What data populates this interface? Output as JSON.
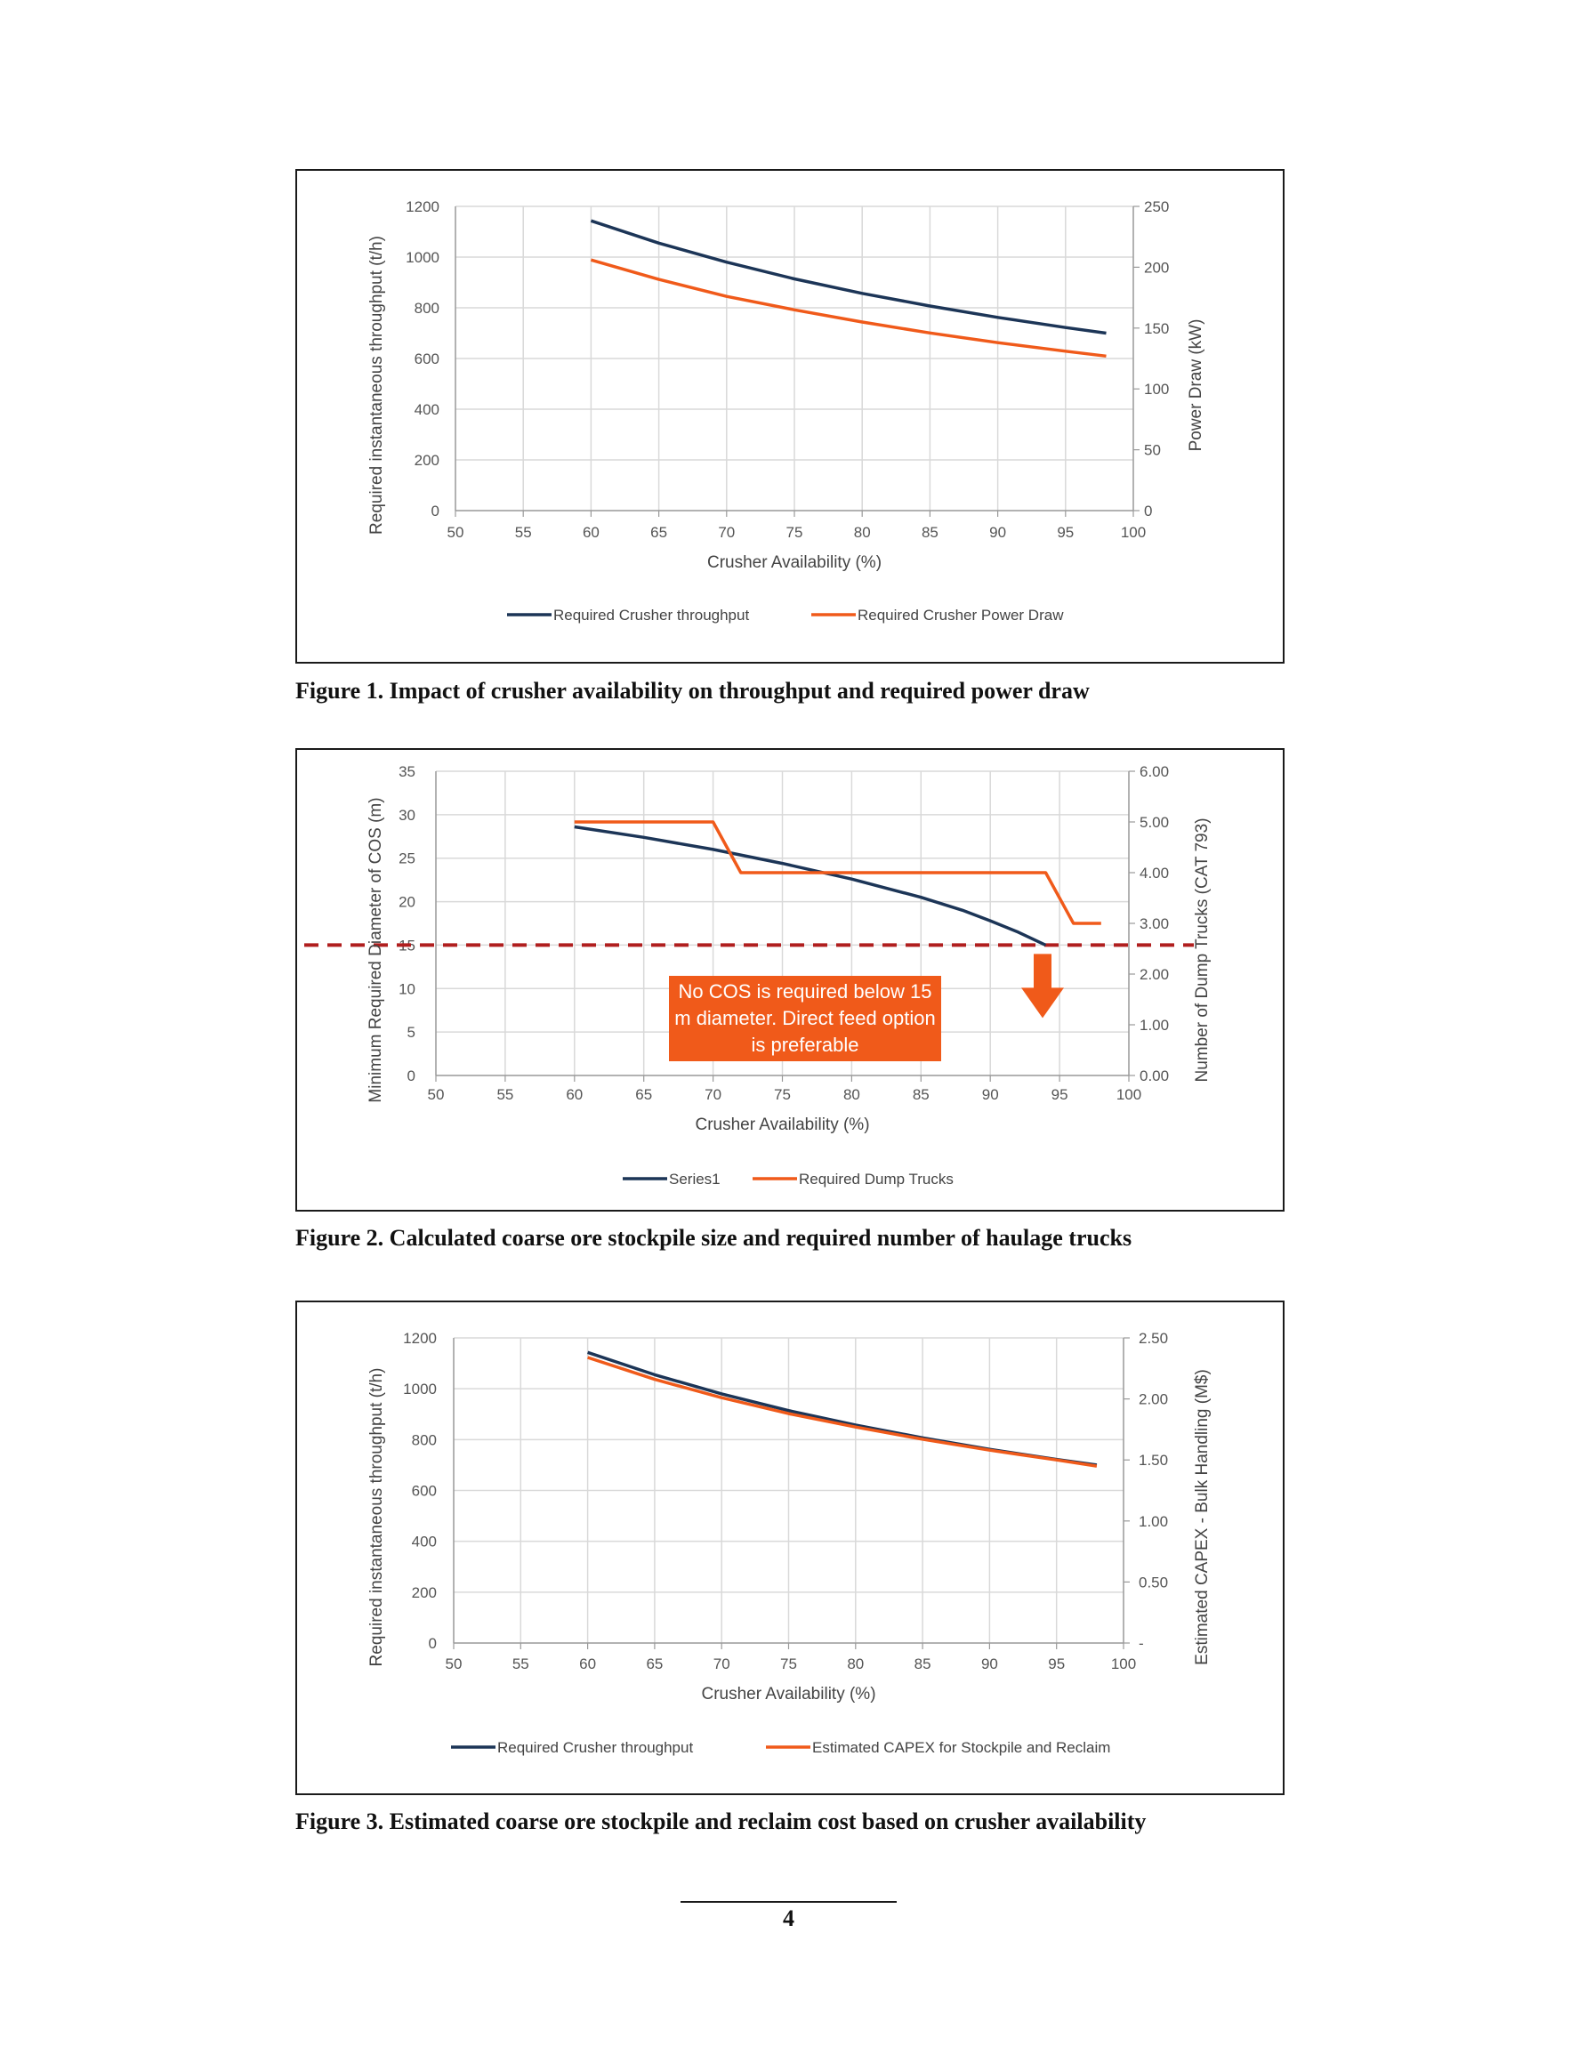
{
  "colors": {
    "navy": "#1c3557",
    "orange": "#f05a1a",
    "darkred": "#b01e1e",
    "grid": "#d9d9d9"
  },
  "captions": {
    "fig1": "Figure 1. Impact of crusher availability on throughput and required power draw",
    "fig2": "Figure 2. Calculated coarse ore stockpile size and required number of haulage trucks",
    "fig3": "Figure 3. Estimated coarse ore stockpile and reclaim cost based on crusher availability"
  },
  "page_number": "4",
  "chart_data": [
    {
      "type": "line",
      "xlabel": "Crusher Availability (%)",
      "ylabel": "Required instantaneous throughput (t/h)",
      "y2label": "Power Draw (kW)",
      "xlim": [
        50,
        100
      ],
      "ylim": [
        0,
        1200
      ],
      "y2lim": [
        0,
        250
      ],
      "xticks": [
        "50",
        "55",
        "60",
        "65",
        "70",
        "75",
        "80",
        "85",
        "90",
        "95",
        "100"
      ],
      "yticks": [
        "0",
        "200",
        "400",
        "600",
        "800",
        "1000",
        "1200"
      ],
      "y2ticks": [
        "0",
        "50",
        "100",
        "150",
        "200",
        "250"
      ],
      "grid": true,
      "legend": "bottom",
      "series": [
        {
          "name": "Required Crusher throughput",
          "axis": "left",
          "color": "#1c3557",
          "x": [
            60,
            65,
            70,
            75,
            80,
            85,
            90,
            95,
            98
          ],
          "y": [
            1143,
            1055,
            980,
            914,
            857,
            807,
            762,
            722,
            700
          ]
        },
        {
          "name": "Required Crusher Power Draw",
          "axis": "right",
          "color": "#f05a1a",
          "x": [
            60,
            65,
            70,
            75,
            80,
            85,
            90,
            95,
            98
          ],
          "y": [
            206,
            190,
            176,
            165,
            155,
            146,
            138,
            131,
            127
          ]
        }
      ]
    },
    {
      "type": "line",
      "xlabel": "Crusher Availability (%)",
      "ylabel": "Minimum Required Diameter of COS (m)",
      "y2label": "Number of Dump Trucks (CAT 793)",
      "xlim": [
        50,
        100
      ],
      "ylim": [
        0,
        35
      ],
      "y2lim": [
        0,
        6
      ],
      "xticks": [
        "50",
        "55",
        "60",
        "65",
        "70",
        "75",
        "80",
        "85",
        "90",
        "95",
        "100"
      ],
      "yticks": [
        "0",
        "5",
        "10",
        "15",
        "20",
        "25",
        "30",
        "35"
      ],
      "y2ticks": [
        "0.00",
        "1.00",
        "2.00",
        "3.00",
        "4.00",
        "5.00",
        "6.00"
      ],
      "grid": true,
      "legend": "bottom",
      "threshold": 15,
      "annotation": "No COS is required below 15 m diameter. Direct feed option is preferable",
      "series": [
        {
          "name": "Series1",
          "axis": "left",
          "color": "#1c3557",
          "x": [
            60,
            65,
            70,
            75,
            80,
            85,
            88,
            90,
            92,
            94
          ],
          "y": [
            28.6,
            27.4,
            26.0,
            24.4,
            22.6,
            20.5,
            19.0,
            17.8,
            16.5,
            15.0
          ]
        },
        {
          "name": "Required Dump Trucks",
          "axis": "right",
          "color": "#f05a1a",
          "x": [
            60,
            70,
            72,
            94,
            96,
            98
          ],
          "y": [
            5,
            5,
            4,
            4,
            3,
            3
          ]
        }
      ]
    },
    {
      "type": "line",
      "xlabel": "Crusher Availability (%)",
      "ylabel": "Required instantaneous throughput (t/h)",
      "y2label": "Estimated CAPEX - Bulk Handling (M$)",
      "xlim": [
        50,
        100
      ],
      "ylim": [
        0,
        1200
      ],
      "y2lim": [
        0,
        2.5
      ],
      "xticks": [
        "50",
        "55",
        "60",
        "65",
        "70",
        "75",
        "80",
        "85",
        "90",
        "95",
        "100"
      ],
      "yticks": [
        "0",
        "200",
        "400",
        "600",
        "800",
        "1000",
        "1200"
      ],
      "y2ticks": [
        "-",
        "0.50",
        "1.00",
        "1.50",
        "2.00",
        "2.50"
      ],
      "grid": true,
      "legend": "bottom",
      "series": [
        {
          "name": "Required Crusher throughput",
          "axis": "left",
          "color": "#1c3557",
          "x": [
            60,
            65,
            70,
            75,
            80,
            85,
            90,
            95,
            98
          ],
          "y": [
            1143,
            1055,
            980,
            914,
            857,
            807,
            762,
            722,
            700
          ]
        },
        {
          "name": "Estimated CAPEX for Stockpile and Reclaim",
          "axis": "right",
          "color": "#f05a1a",
          "x": [
            60,
            65,
            70,
            75,
            80,
            85,
            90,
            95,
            98
          ],
          "y": [
            2.34,
            2.16,
            2.01,
            1.88,
            1.77,
            1.67,
            1.58,
            1.5,
            1.45
          ]
        }
      ]
    }
  ]
}
